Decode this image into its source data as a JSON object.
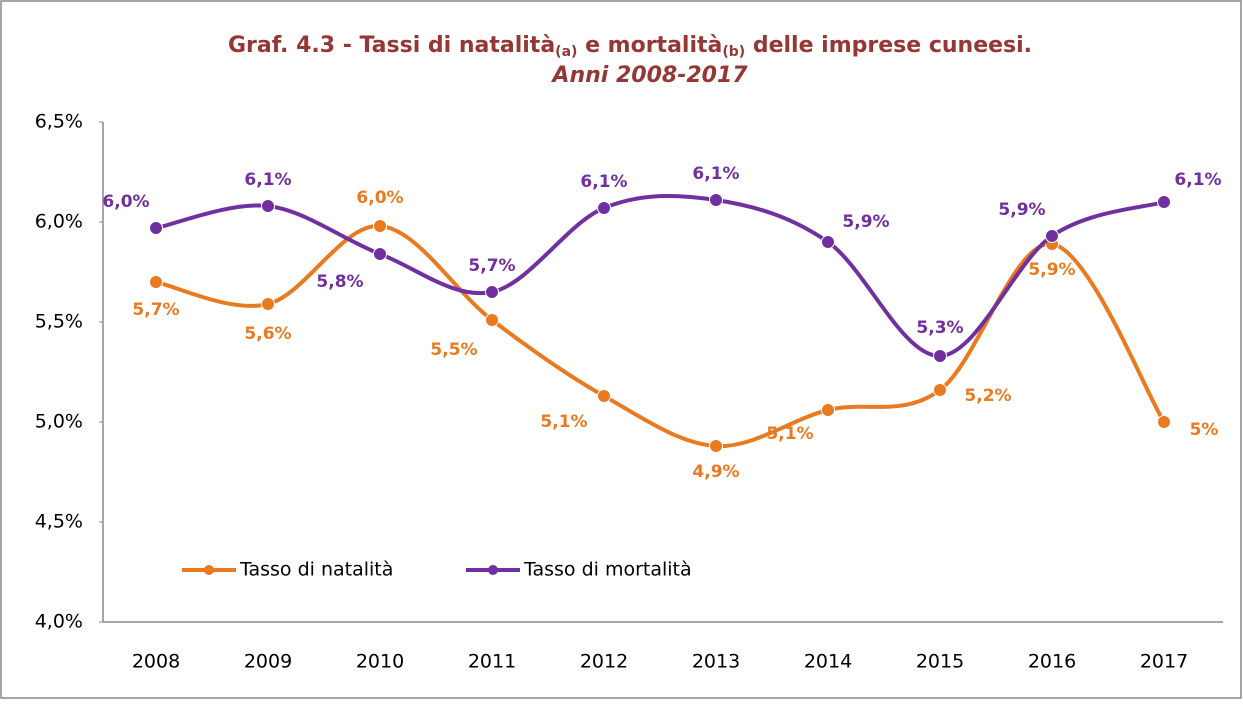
{
  "chart_data": {
    "type": "line",
    "title": [
      "Graf. 4.3 - Tassi di natalità",
      "(a)",
      " e mortalità",
      "(b)",
      " delle imprese cuneesi."
    ],
    "subtitle": "Anni 2008-2017",
    "categories": [
      "2008",
      "2009",
      "2010",
      "2011",
      "2012",
      "2013",
      "2014",
      "2015",
      "2016",
      "2017"
    ],
    "series": [
      {
        "name": "Tasso di natalità",
        "color": "#e97a1f",
        "values": [
          5.7,
          5.59,
          5.98,
          5.51,
          5.13,
          4.88,
          5.06,
          5.16,
          5.89,
          5.0
        ],
        "value_labels": [
          "5,7%",
          "5,6%",
          "6,0%",
          "5,5%",
          "5,1%",
          "4,9%",
          "5,1%",
          "5,2%",
          "5,9%",
          "5%"
        ]
      },
      {
        "name": "Tasso di mortalità",
        "color": "#7030a0",
        "values": [
          5.97,
          6.08,
          5.84,
          5.65,
          6.07,
          6.11,
          5.9,
          5.33,
          5.93,
          6.1
        ],
        "value_labels": [
          "6,0%",
          "6,1%",
          "5,8%",
          "5,7%",
          "6,1%",
          "6,1%",
          "5,9%",
          "5,3%",
          "5,9%",
          "6,1%"
        ]
      }
    ],
    "ylim": [
      4.0,
      6.5
    ],
    "yticks": [
      {
        "value": 4.0,
        "label": "4,0%"
      },
      {
        "value": 4.5,
        "label": "4,5%"
      },
      {
        "value": 5.0,
        "label": "5,0%"
      },
      {
        "value": 5.5,
        "label": "5,5%"
      },
      {
        "value": 6.0,
        "label": "6,0%"
      },
      {
        "value": 6.5,
        "label": "6,5%"
      }
    ],
    "smooth": true,
    "legend": "lower left"
  }
}
